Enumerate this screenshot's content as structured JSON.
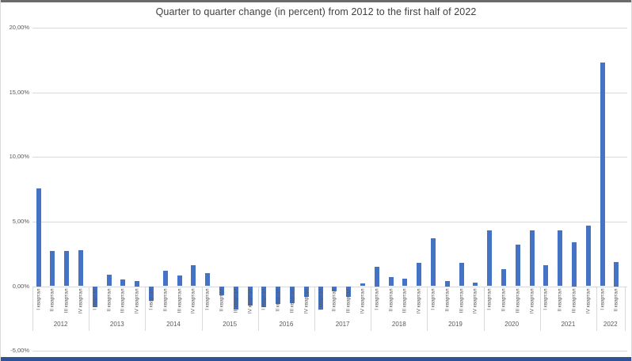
{
  "window_edges": {
    "top": "#6a6a6a",
    "bottom": "#2e5395"
  },
  "chart_data": {
    "type": "bar",
    "title": "Quarter to quarter change (in percent) from 2012 to the first half of 2022",
    "xlabel": "",
    "ylabel": "",
    "ylim": [
      -5,
      20
    ],
    "grid": true,
    "legend": false,
    "value_format": "percent_comma_decimal",
    "yticks": [
      {
        "value": 20,
        "label": "20,00%"
      },
      {
        "value": 15,
        "label": "15,00%"
      },
      {
        "value": 10,
        "label": "10,00%"
      },
      {
        "value": 5,
        "label": "5,00%"
      },
      {
        "value": 0,
        "label": "0,00%"
      },
      {
        "value": -5,
        "label": "-5,00%"
      }
    ],
    "quarter_labels": [
      "I квартал",
      "II квартал",
      "III квартал",
      "IV квартал"
    ],
    "groups": [
      {
        "year": "2012",
        "values": [
          7.6,
          2.7,
          2.7,
          2.8
        ]
      },
      {
        "year": "2013",
        "values": [
          -1.6,
          0.9,
          0.5,
          0.4
        ]
      },
      {
        "year": "2014",
        "values": [
          -1.1,
          1.2,
          0.8,
          1.6
        ]
      },
      {
        "year": "2015",
        "values": [
          1.0,
          -0.7,
          -1.8,
          -1.5
        ]
      },
      {
        "year": "2016",
        "values": [
          -1.6,
          -1.4,
          -1.3,
          -0.8
        ]
      },
      {
        "year": "2017",
        "values": [
          -1.8,
          -0.4,
          -0.8,
          0.2
        ]
      },
      {
        "year": "2018",
        "values": [
          1.5,
          0.7,
          0.6,
          1.8
        ]
      },
      {
        "year": "2019",
        "values": [
          3.7,
          0.4,
          1.8,
          0.3
        ]
      },
      {
        "year": "2020",
        "values": [
          4.3,
          1.3,
          3.2,
          4.3
        ]
      },
      {
        "year": "2021",
        "values": [
          1.6,
          4.3,
          3.4,
          4.7
        ]
      },
      {
        "year": "2022",
        "values": [
          17.3,
          1.9
        ]
      }
    ],
    "colors": {
      "bar": "#4472c4",
      "grid": "#d9d9d9",
      "text": "#595959",
      "title": "#404040"
    }
  }
}
